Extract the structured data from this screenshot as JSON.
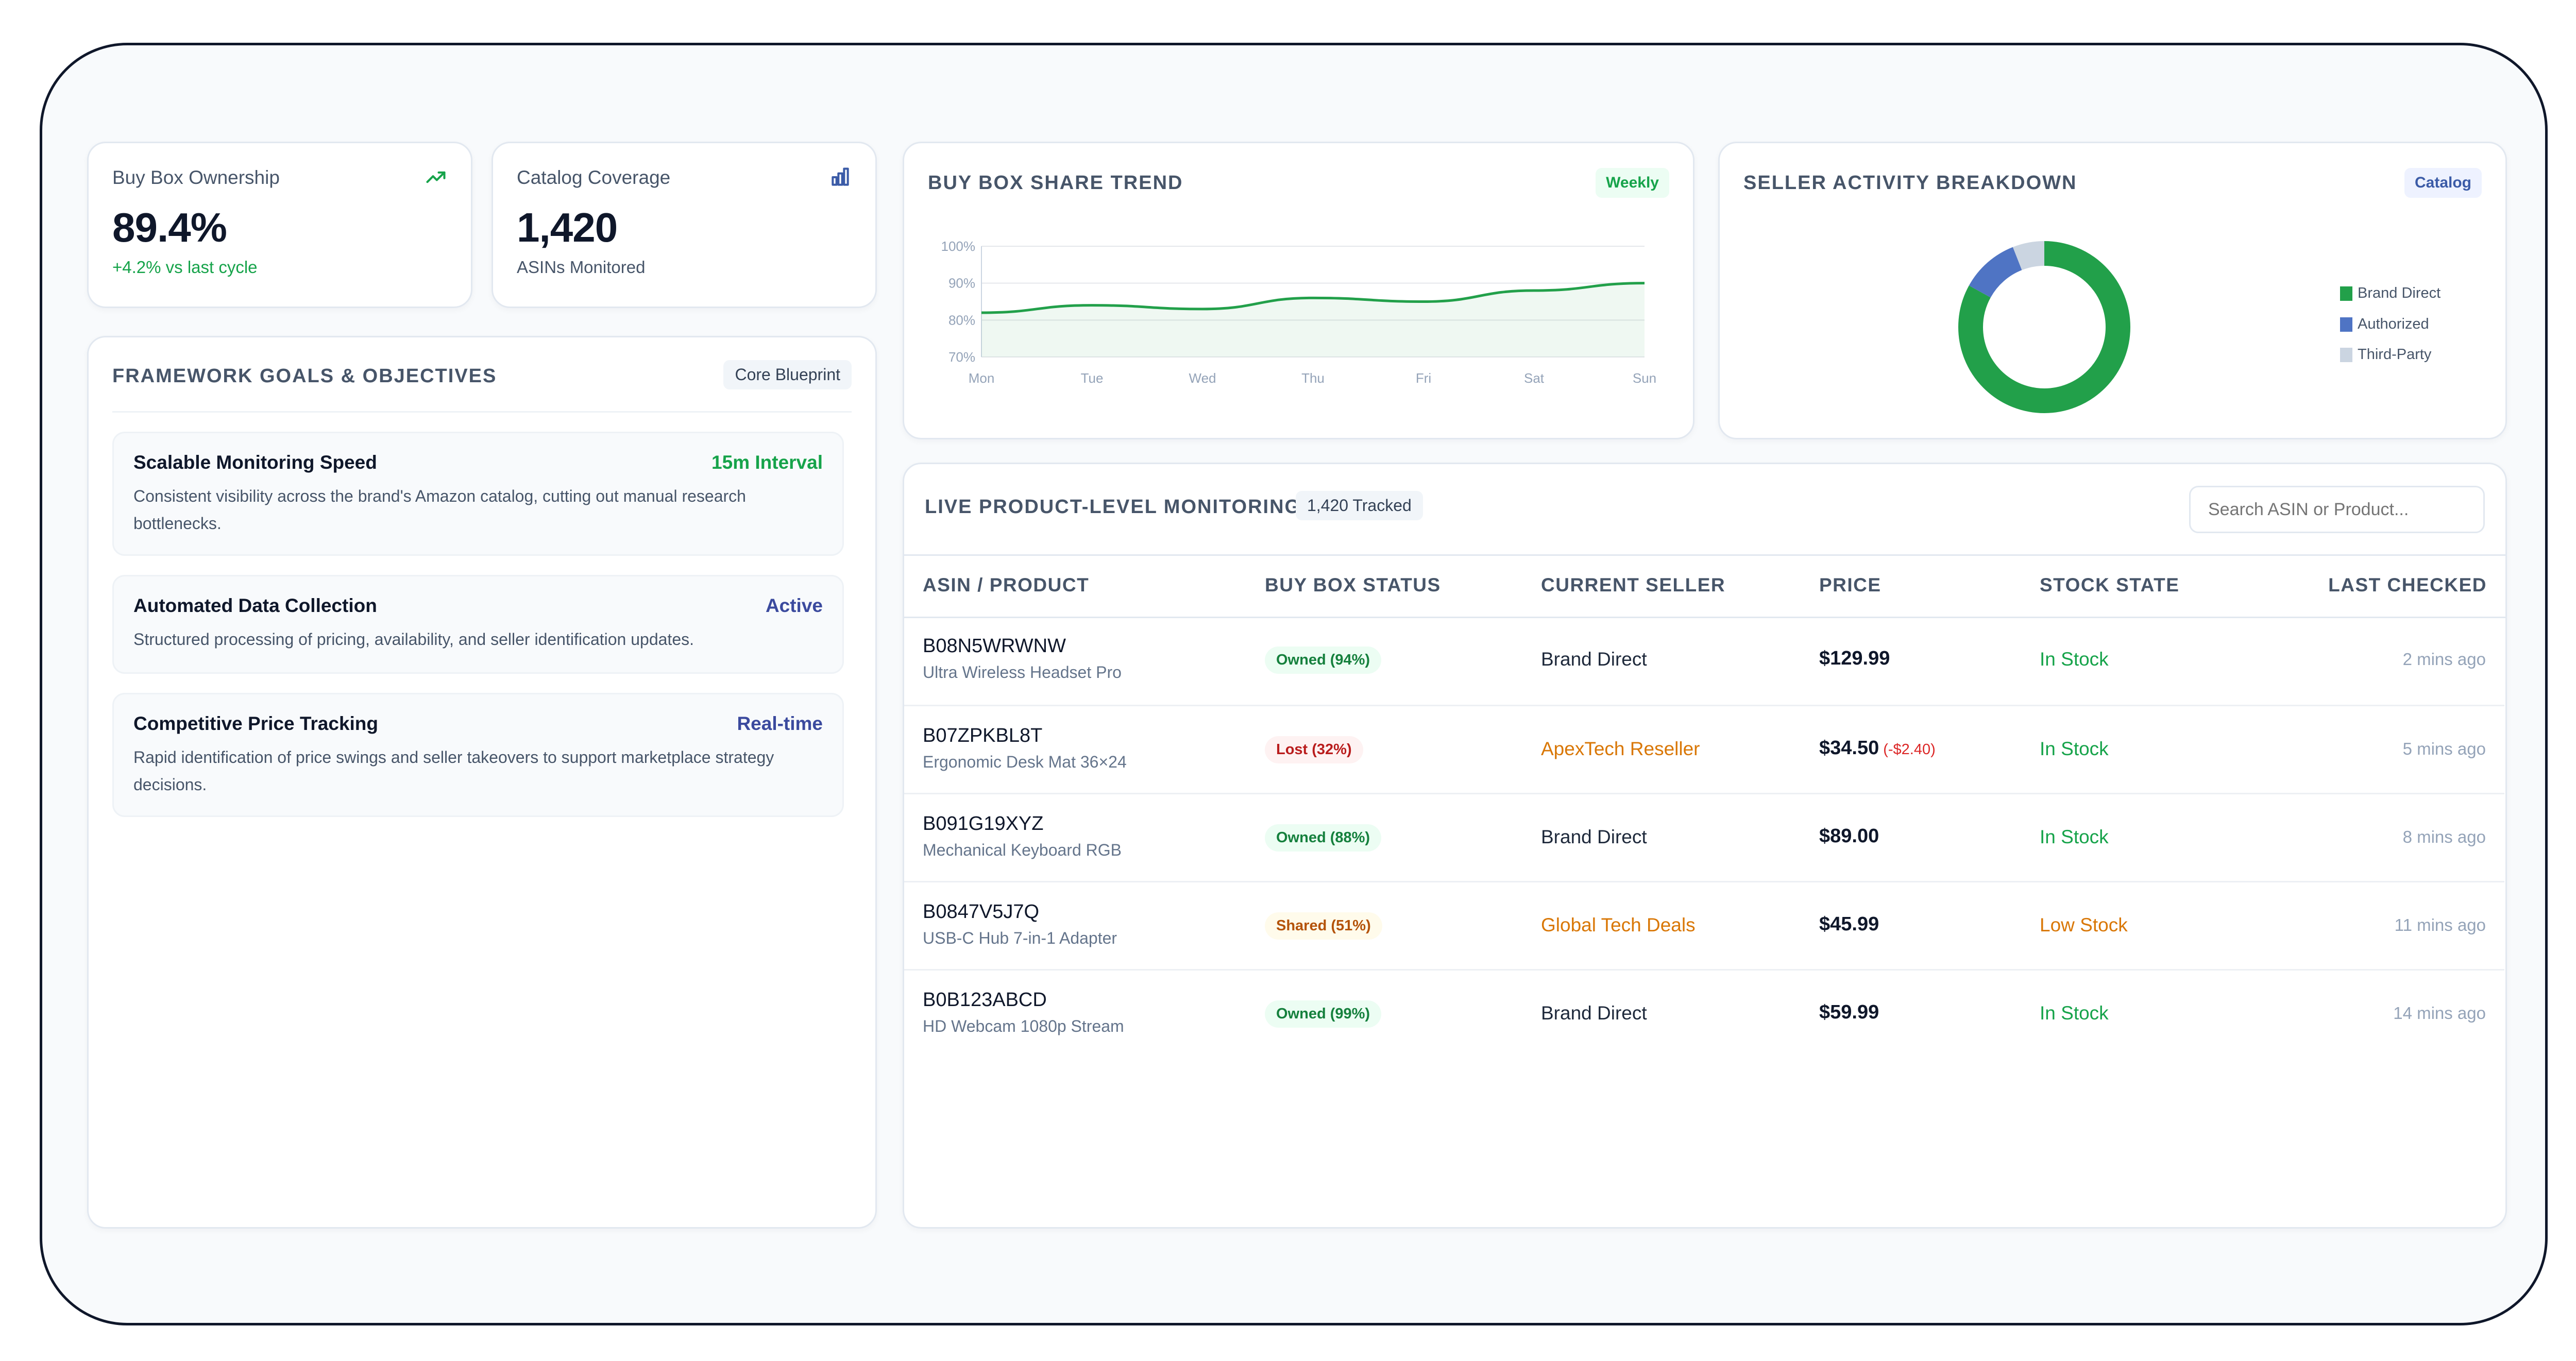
{
  "kpis": {
    "buybox": {
      "title": "Buy Box Ownership",
      "value": "89.4%",
      "sub": "+4.2% vs last cycle",
      "icon": "trending-up-icon"
    },
    "catalog": {
      "title": "Catalog Coverage",
      "value": "1,420",
      "sub": "ASINs Monitored",
      "icon": "bar-chart-icon"
    }
  },
  "goals": {
    "title": "FRAMEWORK GOALS & OBJECTIVES",
    "badge": "Core Blueprint",
    "items": [
      {
        "title": "Scalable Monitoring Speed",
        "tag": "15m Interval",
        "desc": "Consistent visibility across the brand's Amazon catalog, cutting out manual research bottlenecks."
      },
      {
        "title": "Automated Data Collection",
        "tag": "Active",
        "desc": "Structured processing of pricing, availability, and seller identification updates."
      },
      {
        "title": "Competitive Price Tracking",
        "tag": "Real-time",
        "desc": "Rapid identification of price swings and seller takeovers to support marketplace strategy decisions."
      }
    ]
  },
  "trend": {
    "title": "BUY BOX SHARE TREND",
    "badge": "Weekly"
  },
  "breakdown": {
    "title": "SELLER ACTIVITY BREAKDOWN",
    "badge": "Catalog"
  },
  "chart_data": [
    {
      "type": "area",
      "title": "BUY BOX SHARE TREND",
      "categories": [
        "Mon",
        "Tue",
        "Wed",
        "Thu",
        "Fri",
        "Sat",
        "Sun"
      ],
      "series": [
        {
          "values": [
            82,
            84,
            83,
            86,
            85,
            88,
            90
          ]
        }
      ],
      "y_ticks": [
        "100%",
        "90%",
        "80%",
        "70%"
      ],
      "ylim": [
        70,
        100
      ],
      "grid": true
    },
    {
      "type": "pie",
      "title": "SELLER ACTIVITY BREAKDOWN",
      "donut": true,
      "labels": [
        "Brand Direct",
        "Authorized",
        "Third-Party"
      ],
      "values": [
        83,
        11,
        6
      ],
      "colors": [
        "#22a04a",
        "#4f74c4",
        "#cbd5e1"
      ],
      "legend": "right"
    }
  ],
  "monitoring": {
    "title": "LIVE PRODUCT-LEVEL MONITORING",
    "badge": "1,420 Tracked",
    "search_placeholder": "Search ASIN or Product...",
    "columns": [
      "ASIN / PRODUCT",
      "BUY BOX STATUS",
      "CURRENT SELLER",
      "PRICE",
      "STOCK STATE",
      "LAST CHECKED"
    ],
    "rows": [
      {
        "asin": "B08N5WRWNW",
        "name": "Ultra Wireless Headset Pro",
        "status": "Owned (94%)",
        "seller": "Brand Direct",
        "price": "$129.99",
        "delta": "",
        "stock": "In Stock",
        "checked": "2 mins ago"
      },
      {
        "asin": "B07ZPKBL8T",
        "name": "Ergonomic Desk Mat 36×24",
        "status": "Lost (32%)",
        "seller": "ApexTech Reseller",
        "price": "$34.50",
        "delta": "(-$2.40)",
        "stock": "In Stock",
        "checked": "5 mins ago"
      },
      {
        "asin": "B091G19XYZ",
        "name": "Mechanical Keyboard RGB",
        "status": "Owned (88%)",
        "seller": "Brand Direct",
        "price": "$89.00",
        "delta": "",
        "stock": "In Stock",
        "checked": "8 mins ago"
      },
      {
        "asin": "B0847V5J7Q",
        "name": "USB-C Hub 7-in-1 Adapter",
        "status": "Shared (51%)",
        "seller": "Global Tech Deals",
        "price": "$45.99",
        "delta": "",
        "stock": "Low Stock",
        "checked": "11 mins ago"
      },
      {
        "asin": "B0B123ABCD",
        "name": "HD Webcam 1080p Stream",
        "status": "Owned (99%)",
        "seller": "Brand Direct",
        "price": "$59.99",
        "delta": "",
        "stock": "In Stock",
        "checked": "14 mins ago"
      }
    ]
  }
}
